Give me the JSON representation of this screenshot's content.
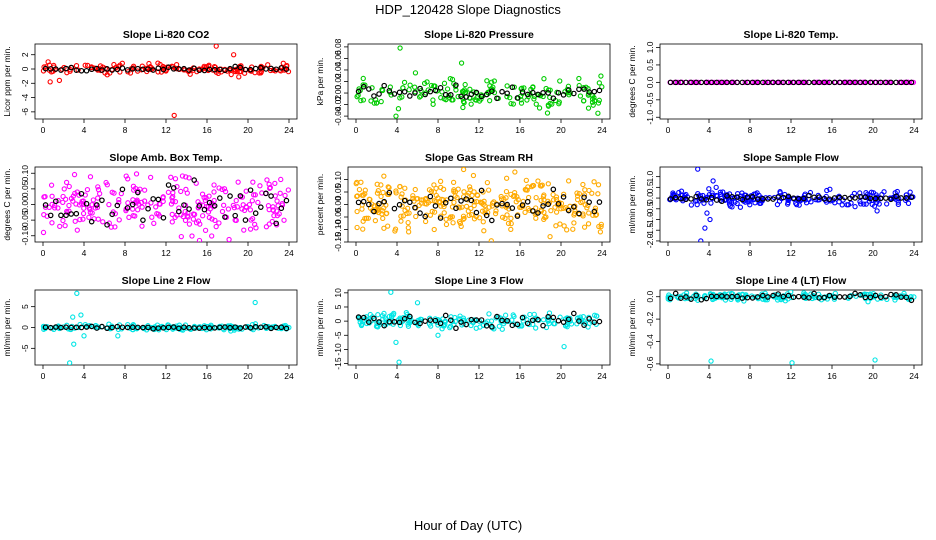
{
  "page": {
    "title": "HDP_120428  Slope Diagnostics",
    "xlabel": "Hour of Day (UTC)"
  },
  "chart_data": [
    {
      "id": "co2",
      "type": "scatter",
      "title": "Slope Li-820 CO2",
      "ylabel": "Licor ppm per min.",
      "color": "#ff0000",
      "xlim": [
        0,
        24
      ],
      "xticks": [
        0,
        4,
        8,
        12,
        16,
        20,
        24
      ],
      "ylim": [
        -7,
        3.5
      ],
      "yticks": [
        -6,
        -4,
        -2,
        0,
        2
      ],
      "ytick_labels": [
        "-6",
        "-4",
        "-2",
        "0",
        "2"
      ],
      "noise": 0.35,
      "points_count": 150,
      "hourly_count": 48,
      "hourly_noise": 0.12,
      "outliers": [
        {
          "x": 0.7,
          "y": -1.8
        },
        {
          "x": 1.6,
          "y": -1.6
        },
        {
          "x": 12.8,
          "y": -6.5
        },
        {
          "x": 16.9,
          "y": 3.2
        },
        {
          "x": 18.6,
          "y": 2.0
        },
        {
          "x": 19.1,
          "y": -1.1
        },
        {
          "x": 0.5,
          "y": 1.0
        }
      ]
    },
    {
      "id": "pressure",
      "type": "scatter",
      "title": "Slope Li-820 Pressure",
      "ylabel": "kPa per min.",
      "color": "#00cc00",
      "xlim": [
        0,
        24
      ],
      "xticks": [
        0,
        4,
        8,
        12,
        16,
        20,
        24
      ],
      "ylim": [
        -0.045,
        0.085
      ],
      "yticks": [
        -0.04,
        -0.02,
        0.0,
        0.02,
        0.04,
        0.06,
        0.08
      ],
      "ytick_labels": [
        "-0.04",
        "-0.02",
        "0.00",
        "0.02",
        "0.04",
        "0.06",
        "0.08"
      ],
      "noise": 0.012,
      "points_count": 170,
      "hourly_count": 48,
      "hourly_noise": 0.006,
      "outliers": [
        {
          "x": 4.3,
          "y": 0.078
        },
        {
          "x": 10.3,
          "y": 0.052
        },
        {
          "x": 5.8,
          "y": 0.035
        },
        {
          "x": 3.9,
          "y": -0.04
        },
        {
          "x": 23.6,
          "y": -0.035
        },
        {
          "x": 9.2,
          "y": 0.025
        }
      ]
    },
    {
      "id": "temp",
      "type": "scatter",
      "title": "Slope Li-820 Temp.",
      "ylabel": "degrees C per min.",
      "color": "#ff00ff",
      "xlim": [
        0,
        24
      ],
      "xticks": [
        0,
        4,
        8,
        12,
        16,
        20,
        24
      ],
      "ylim": [
        -1.05,
        1.1
      ],
      "yticks": [
        -1.0,
        -0.5,
        0.0,
        0.5,
        1.0
      ],
      "ytick_labels": [
        "-1.0",
        "-0.5",
        "0.0",
        "0.5",
        "1.0"
      ],
      "noise": 0.0,
      "points_count": 120,
      "hourly_count": 48,
      "hourly_noise": 0.0,
      "outliers": []
    },
    {
      "id": "boxtemp",
      "type": "scatter",
      "title": "Slope Amb. Box Temp.",
      "ylabel": "degrees C per min.",
      "color": "#ff00ff",
      "xlim": [
        0,
        24
      ],
      "xticks": [
        0,
        4,
        8,
        12,
        16,
        20,
        24
      ],
      "ylim": [
        -0.12,
        0.12
      ],
      "yticks": [
        -0.1,
        -0.05,
        0.0,
        0.05,
        0.1
      ],
      "ytick_labels": [
        "-0.10",
        "-0.05",
        "0.00",
        "0.05",
        "0.10"
      ],
      "noise": 0.045,
      "points_count": 260,
      "hourly_count": 48,
      "hourly_noise": 0.035,
      "outliers": []
    },
    {
      "id": "rh",
      "type": "scatter",
      "title": "Slope Gas Stream RH",
      "ylabel": "percent per min.",
      "color": "#ffaa00",
      "xlim": [
        0,
        24
      ],
      "xticks": [
        0,
        4,
        8,
        12,
        16,
        20,
        24
      ],
      "ylim": [
        -0.15,
        0.15
      ],
      "yticks": [
        -0.15,
        -0.1,
        -0.05,
        0.0,
        0.05,
        0.1
      ],
      "ytick_labels": [
        "-0.15",
        "-0.10",
        "-0.05",
        "0.00",
        "0.05",
        "0.10"
      ],
      "noise": 0.05,
      "points_count": 320,
      "hourly_count": 48,
      "hourly_noise": 0.025,
      "outliers": [
        {
          "x": 13.2,
          "y": -0.145
        },
        {
          "x": 15.5,
          "y": 0.13
        },
        {
          "x": 10.5,
          "y": 0.14
        }
      ]
    },
    {
      "id": "sample",
      "type": "scatter",
      "title": "Slope Sample Flow",
      "ylabel": "ml/min per min.",
      "color": "#0000ff",
      "xlim": [
        0,
        24
      ],
      "xticks": [
        0,
        4,
        8,
        12,
        16,
        20,
        24
      ],
      "ylim": [
        -2.05,
        1.45
      ],
      "yticks": [
        -2.0,
        -1.5,
        -1.0,
        -0.5,
        0.0,
        0.5,
        1.0
      ],
      "ytick_labels": [
        "-2.0",
        "-1.5",
        "-1.0",
        "-0.5",
        "0.0",
        "0.5",
        "1.0"
      ],
      "noise": 0.17,
      "points_count": 220,
      "hourly_count": 48,
      "hourly_noise": 0.06,
      "outliers": [
        {
          "x": 2.9,
          "y": 1.35
        },
        {
          "x": 3.2,
          "y": -2.0
        },
        {
          "x": 3.6,
          "y": -1.4
        },
        {
          "x": 4.1,
          "y": -1.0
        },
        {
          "x": 4.4,
          "y": 0.8
        },
        {
          "x": 3.8,
          "y": -0.7
        },
        {
          "x": 20.4,
          "y": -0.6
        },
        {
          "x": 4.7,
          "y": 0.5
        }
      ]
    },
    {
      "id": "line2",
      "type": "scatter",
      "title": "Slope Line 2 Flow",
      "ylabel": "ml/min per min.",
      "color": "#00e5e5",
      "xlim": [
        0,
        24
      ],
      "xticks": [
        0,
        4,
        8,
        12,
        16,
        20,
        24
      ],
      "ylim": [
        -9,
        9
      ],
      "yticks": [
        -5,
        0,
        5
      ],
      "ytick_labels": [
        "-5",
        "0",
        "5"
      ],
      "noise": 0.35,
      "points_count": 170,
      "hourly_count": 48,
      "hourly_noise": 0.12,
      "outliers": [
        {
          "x": 2.6,
          "y": -8.5
        },
        {
          "x": 3.3,
          "y": 8.2
        },
        {
          "x": 3.0,
          "y": -4.0
        },
        {
          "x": 3.7,
          "y": 3.0
        },
        {
          "x": 2.9,
          "y": 2.5
        },
        {
          "x": 20.7,
          "y": 6.0
        },
        {
          "x": 4.0,
          "y": -2.0
        },
        {
          "x": 7.3,
          "y": -2.0
        }
      ]
    },
    {
      "id": "line3",
      "type": "scatter",
      "title": "Slope Line 3 Flow",
      "ylabel": "ml/min per min.",
      "color": "#00e5e5",
      "xlim": [
        0,
        24
      ],
      "xticks": [
        0,
        4,
        8,
        12,
        16,
        20,
        24
      ],
      "ylim": [
        -15.5,
        11
      ],
      "yticks": [
        -15,
        -10,
        -5,
        0,
        5,
        10
      ],
      "ytick_labels": [
        "-15",
        "-10",
        "-5",
        "0",
        "5",
        "10"
      ],
      "noise": 1.4,
      "points_count": 190,
      "hourly_count": 48,
      "hourly_noise": 1.0,
      "outliers": [
        {
          "x": 3.4,
          "y": 10.2
        },
        {
          "x": 4.2,
          "y": -14.5
        },
        {
          "x": 6.0,
          "y": 6.5
        },
        {
          "x": 20.3,
          "y": -9.0
        },
        {
          "x": 8.0,
          "y": -5.0
        },
        {
          "x": 3.9,
          "y": -7.5
        }
      ]
    },
    {
      "id": "line4",
      "type": "scatter",
      "title": "Slope Line 4 (LT) Flow",
      "ylabel": "ml/min per min.",
      "color": "#00e5e5",
      "xlim": [
        0,
        24
      ],
      "xticks": [
        0,
        4,
        8,
        12,
        16,
        20,
        24
      ],
      "ylim": [
        -0.61,
        0.06
      ],
      "yticks": [
        -0.6,
        -0.4,
        -0.2,
        0.0
      ],
      "ytick_labels": [
        "-0.6",
        "-0.4",
        "-0.2",
        "0.0"
      ],
      "noise": 0.018,
      "points_count": 170,
      "hourly_count": 48,
      "hourly_noise": 0.012,
      "outliers": [
        {
          "x": 4.2,
          "y": -0.575
        },
        {
          "x": 12.1,
          "y": -0.59
        },
        {
          "x": 20.2,
          "y": -0.565
        }
      ]
    }
  ]
}
